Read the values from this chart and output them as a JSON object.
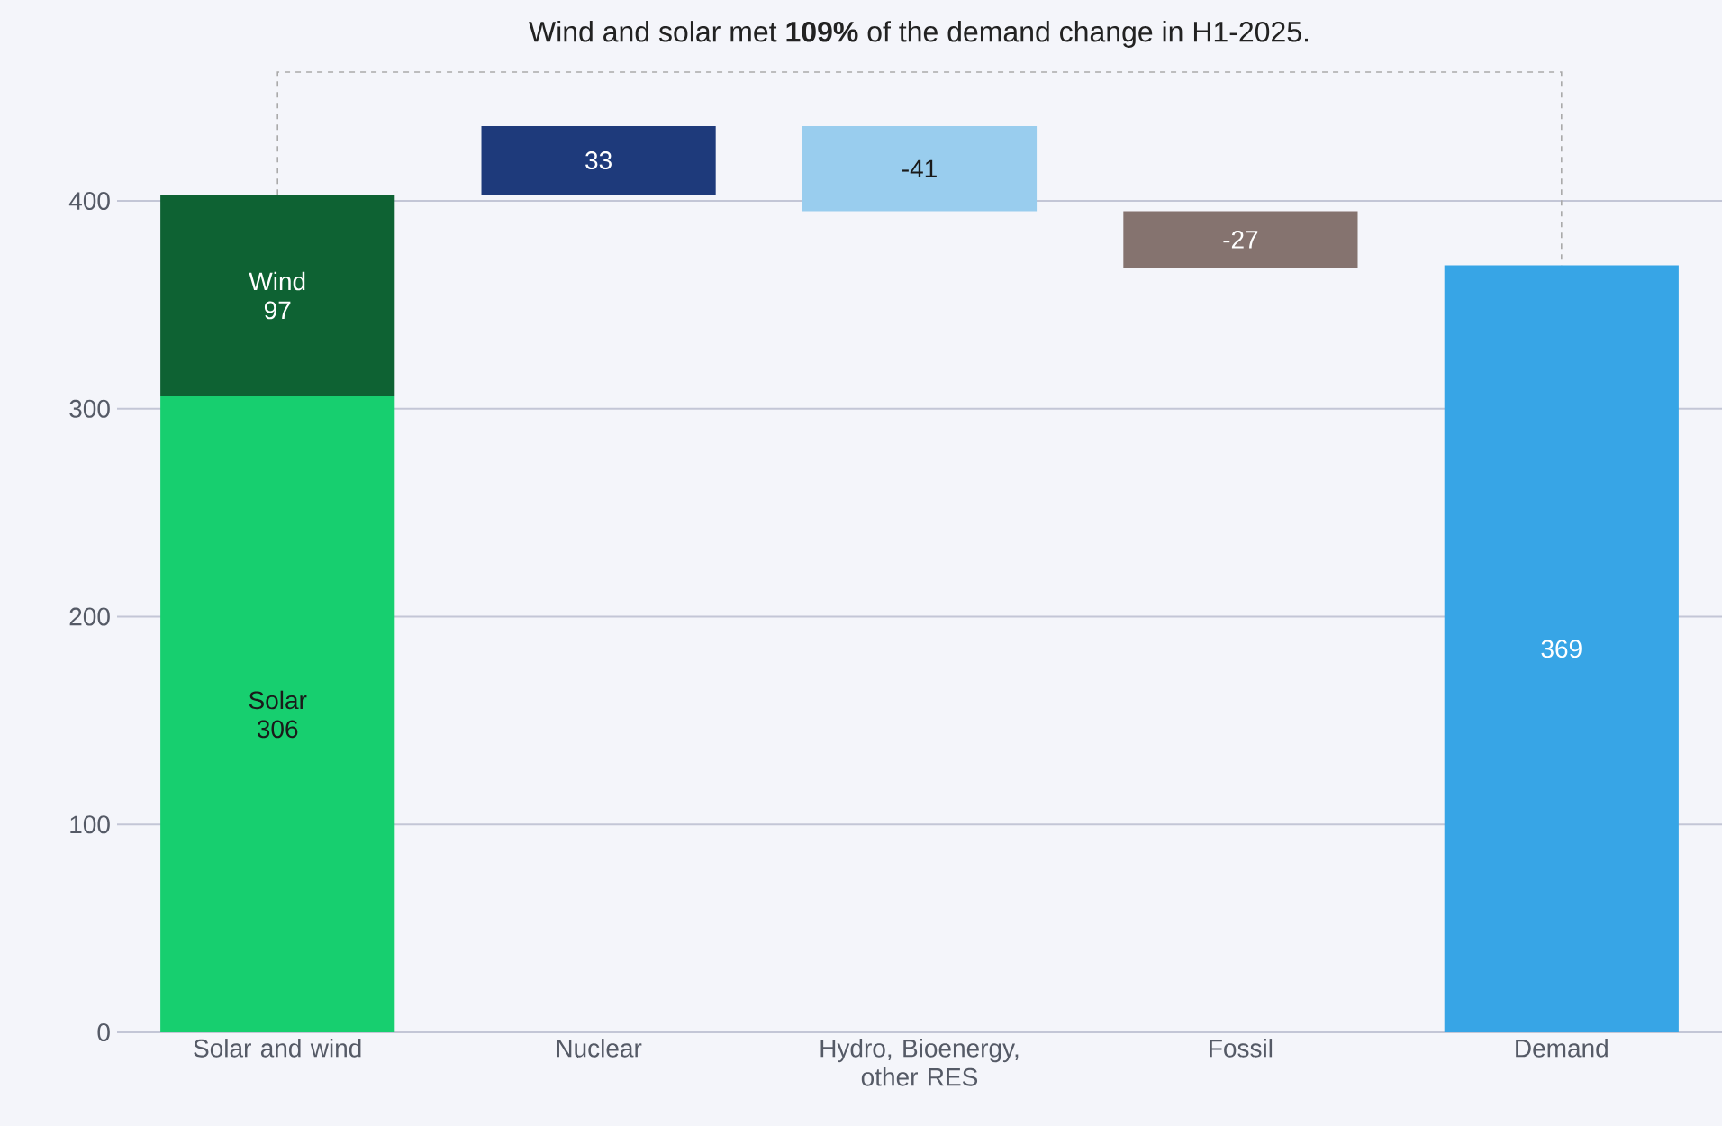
{
  "chart_data": {
    "type": "bar",
    "title": "Wind and solar met **109%** of the demand change in H1-2025.",
    "categories": [
      "Solar and wind",
      "Nuclear",
      "Hydro, Bioenergy, other RES",
      "Fossil",
      "Demand"
    ],
    "series": [
      {
        "name": "Solar",
        "color": "#17cf6f",
        "values": [
          306,
          null,
          null,
          null,
          null
        ],
        "base": [
          0,
          null,
          null,
          null,
          null
        ]
      },
      {
        "name": "Wind",
        "color": "#0e6233",
        "values": [
          97,
          null,
          null,
          null,
          null
        ],
        "base": [
          306,
          null,
          null,
          null,
          null
        ]
      },
      {
        "colors": [
          null,
          "#1e3a7b",
          "#99cdee",
          "#85736f",
          "#37a5e6"
        ],
        "values": [
          null,
          33,
          -41,
          -27,
          369
        ],
        "base": [
          null,
          403,
          436,
          395,
          0
        ]
      }
    ],
    "ylim": [
      0,
      462
    ],
    "yticks": [
      0,
      100,
      200,
      300,
      400
    ],
    "grid": "y",
    "data_labels": true
  }
}
